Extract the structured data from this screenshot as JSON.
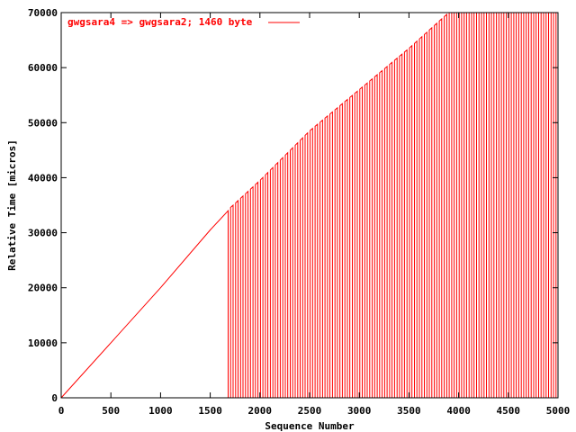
{
  "chart_data": {
    "type": "line",
    "title": "",
    "xlabel": "Sequence Number",
    "ylabel": "Relative Time [micros]",
    "xlim": [
      0,
      5000
    ],
    "ylim": [
      0,
      70000
    ],
    "x_ticks": [
      0,
      500,
      1000,
      1500,
      2000,
      2500,
      3000,
      3500,
      4000,
      4500,
      5000
    ],
    "y_ticks": [
      0,
      10000,
      20000,
      30000,
      40000,
      50000,
      60000,
      70000
    ],
    "grid": false,
    "legend_position": "top-left",
    "series": [
      {
        "name": "gwgsara4 => gwgsara2; 1460 byte",
        "color": "#ff0000",
        "x": [
          0,
          500,
          1000,
          1500,
          1680,
          1700,
          2000,
          2500,
          3000,
          3500,
          3900,
          3950,
          5000
        ],
        "y": [
          0,
          10000,
          20000,
          30500,
          34000,
          34500,
          39500,
          48500,
          56000,
          63500,
          70000,
          70000,
          70000
        ],
        "oscillation_start_x": 1680,
        "oscillation_low_y": 0
      }
    ]
  }
}
